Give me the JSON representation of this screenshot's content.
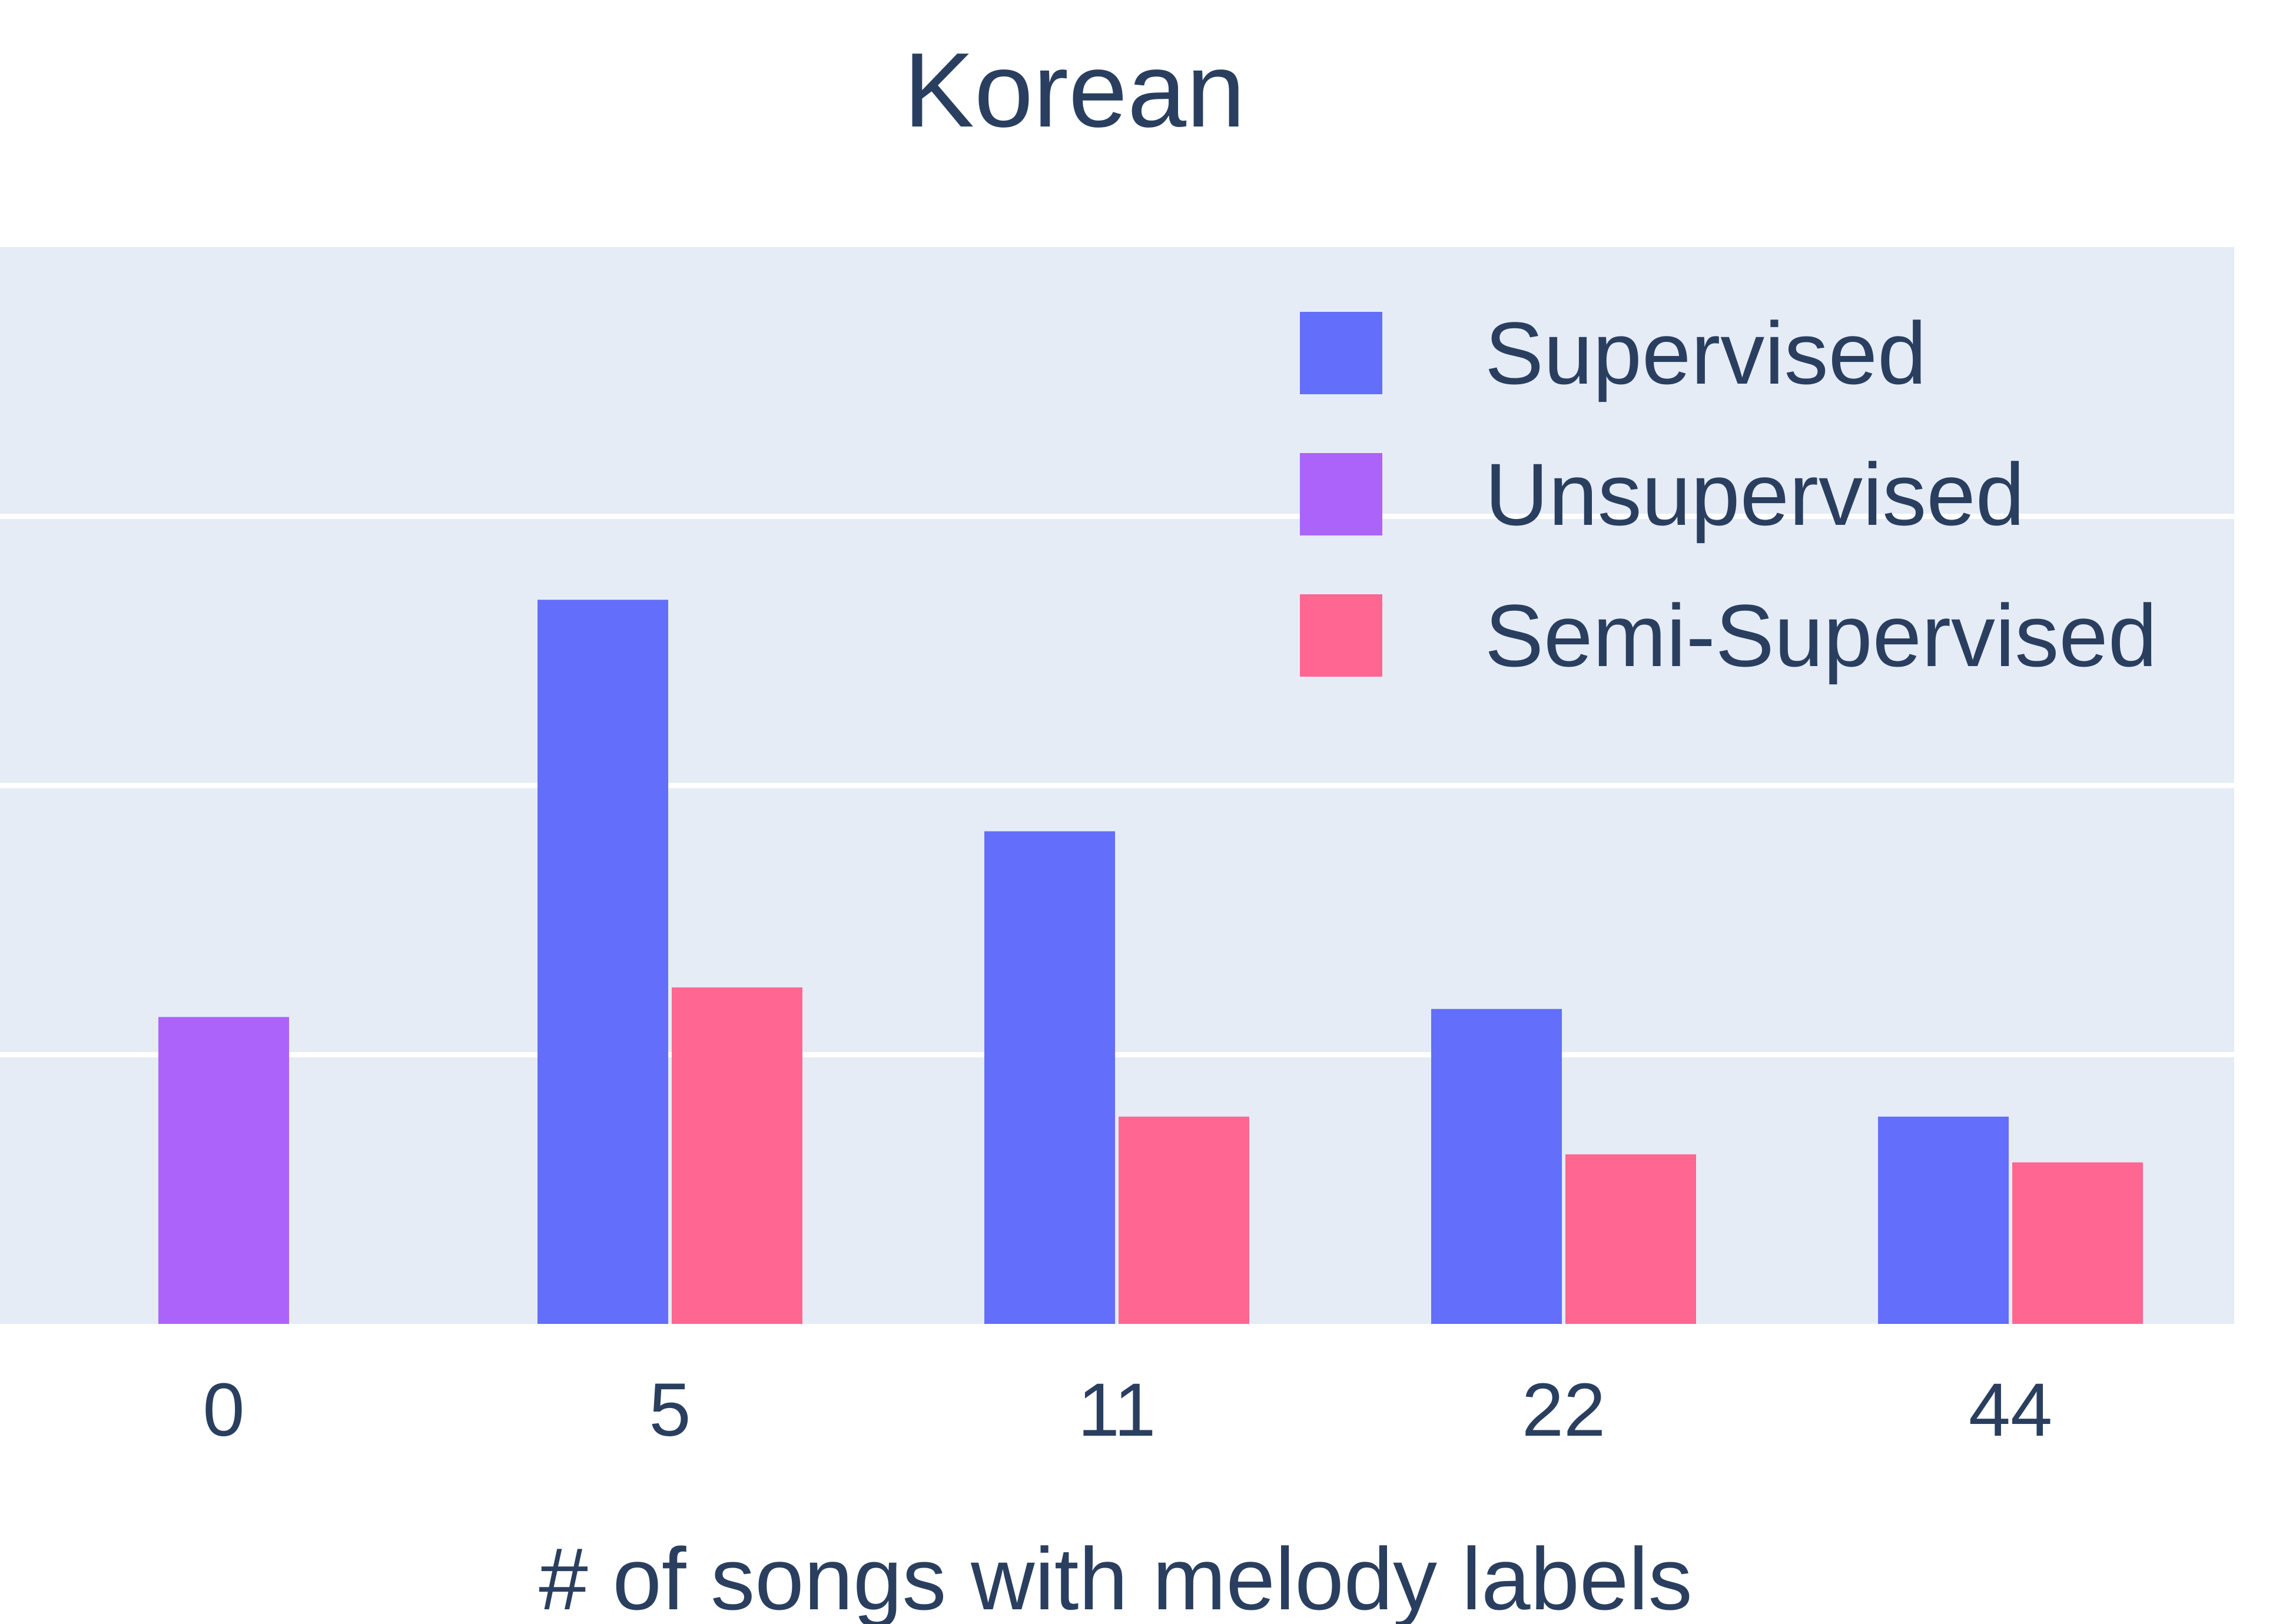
{
  "chart_data": {
    "type": "bar",
    "title": "Korean",
    "xlabel": "# of songs with melody labels",
    "ylabel": "",
    "categories": [
      "0",
      "5",
      "11",
      "22",
      "44"
    ],
    "ylim": [
      0,
      4
    ],
    "gridlines": [
      1,
      2,
      3
    ],
    "show_y_tick_labels": false,
    "legend_position": "top-right",
    "plot_background": "#e5ecf6",
    "series": [
      {
        "name": "Supervised",
        "color": "#636efa",
        "values": [
          null,
          2.69,
          1.83,
          1.17,
          0.77
        ]
      },
      {
        "name": "Unsupervised",
        "color": "#ab63fa",
        "values": [
          1.14,
          null,
          null,
          null,
          null
        ]
      },
      {
        "name": "Semi-Supervised",
        "color": "#ff6692",
        "values": [
          null,
          1.25,
          0.77,
          0.63,
          0.6
        ]
      }
    ]
  }
}
